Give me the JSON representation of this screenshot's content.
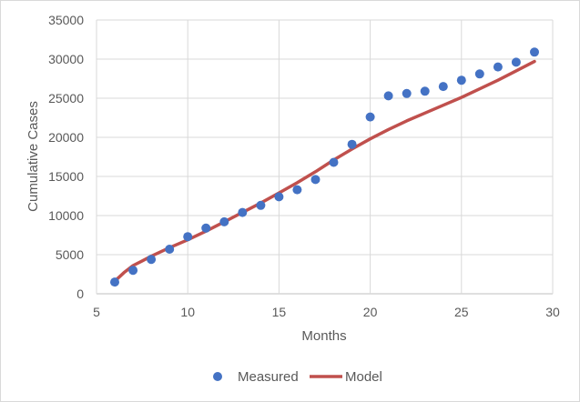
{
  "chart_data": {
    "type": "scatter",
    "title": "",
    "xlabel": "Months",
    "ylabel": "Cumulative Cases",
    "xlim": [
      5,
      30
    ],
    "ylim": [
      0,
      35000
    ],
    "xticks": [
      5,
      10,
      15,
      20,
      25,
      30
    ],
    "yticks": [
      0,
      5000,
      10000,
      15000,
      20000,
      25000,
      30000,
      35000
    ],
    "grid": true,
    "legend_position": "bottom",
    "series": [
      {
        "name": "Measured",
        "kind": "scatter",
        "color": "#4472C4",
        "x": [
          6,
          7,
          8,
          9,
          10,
          11,
          12,
          13,
          14,
          15,
          16,
          17,
          18,
          19,
          20,
          21,
          22,
          23,
          24,
          25,
          26,
          27,
          28,
          29
        ],
        "y": [
          1500,
          3000,
          4400,
          5700,
          7300,
          8400,
          9200,
          10400,
          11300,
          12400,
          13300,
          14600,
          16800,
          19100,
          22600,
          25300,
          25600,
          25900,
          26500,
          27300,
          28100,
          29000,
          29600,
          30900
        ]
      },
      {
        "name": "Model",
        "kind": "line",
        "color": "#C0504D",
        "x": [
          6,
          6.5,
          7,
          7.5,
          8,
          9,
          10,
          11,
          12,
          13,
          14,
          15,
          16,
          17,
          18,
          19,
          20,
          21,
          22,
          23,
          24,
          25,
          26,
          27,
          28,
          29
        ],
        "y": [
          1600,
          2700,
          3600,
          4200,
          4800,
          5900,
          6900,
          8000,
          9200,
          10400,
          11600,
          12900,
          14200,
          15600,
          17100,
          18500,
          19800,
          21000,
          22100,
          23100,
          24100,
          25100,
          26200,
          27300,
          28500,
          29700
        ]
      }
    ]
  }
}
